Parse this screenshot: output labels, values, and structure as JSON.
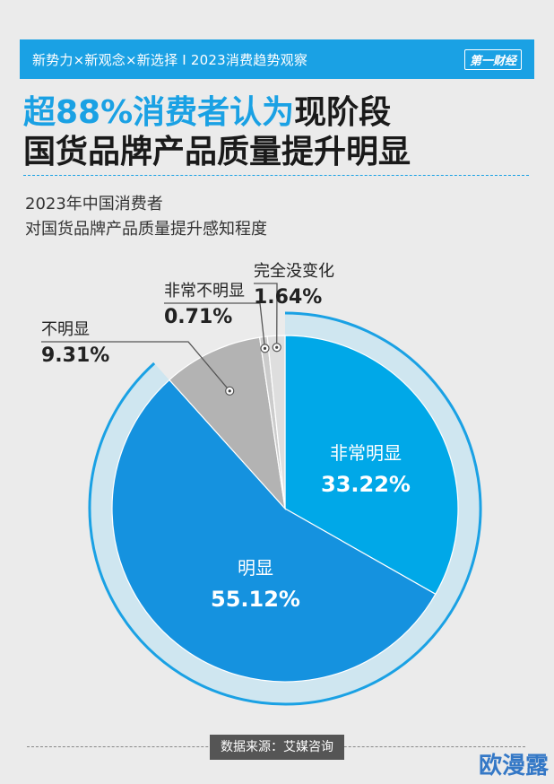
{
  "header": {
    "text": "新势力×新观念×新选择 I 2023消费趋势观察",
    "brand": "第一财经"
  },
  "headline": {
    "accent": "超88%消费者认为",
    "rest_line1": "现阶段",
    "line2": "国货品牌产品质量提升明显"
  },
  "subtitle": {
    "line1": "2023年中国消费者",
    "line2": "对国货品牌产品质量提升感知程度"
  },
  "chart_data": {
    "type": "pie",
    "title": "2023年中国消费者对国货品牌产品质量提升感知程度",
    "unit": "%",
    "slices": [
      {
        "label": "非常明显",
        "value": 33.22,
        "value_text": "33.22%",
        "color": "#00a8e8",
        "text_color": "#ffffff"
      },
      {
        "label": "明显",
        "value": 55.12,
        "value_text": "55.12%",
        "color": "#1592df",
        "text_color": "#ffffff"
      },
      {
        "label": "不明显",
        "value": 9.31,
        "value_text": "9.31%",
        "color": "#b3b3b3",
        "text_color": "#222222"
      },
      {
        "label": "非常不明显",
        "value": 0.71,
        "value_text": "0.71%",
        "color": "#cccccc",
        "text_color": "#222222"
      },
      {
        "label": "完全没变化",
        "value": 1.64,
        "value_text": "1.64%",
        "color": "#dedede",
        "text_color": "#222222"
      }
    ]
  },
  "footer": {
    "source": "数据来源：艾媒咨询"
  },
  "watermark": "欧漫露"
}
